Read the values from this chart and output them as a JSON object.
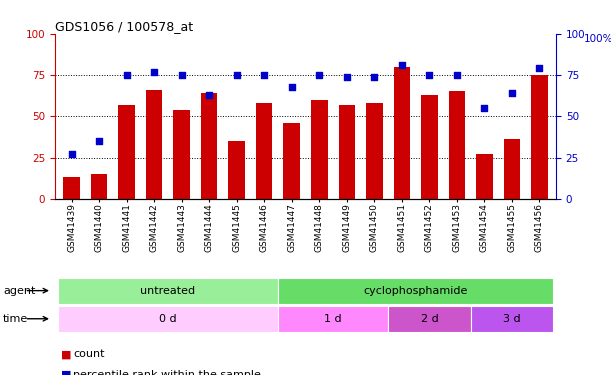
{
  "title": "GDS1056 / 100578_at",
  "samples": [
    "GSM41439",
    "GSM41440",
    "GSM41441",
    "GSM41442",
    "GSM41443",
    "GSM41444",
    "GSM41445",
    "GSM41446",
    "GSM41447",
    "GSM41448",
    "GSM41449",
    "GSM41450",
    "GSM41451",
    "GSM41452",
    "GSM41453",
    "GSM41454",
    "GSM41455",
    "GSM41456"
  ],
  "count_values": [
    13,
    15,
    57,
    66,
    54,
    64,
    35,
    58,
    46,
    60,
    57,
    58,
    80,
    63,
    65,
    27,
    36,
    75
  ],
  "percentile_values": [
    27,
    35,
    75,
    77,
    75,
    63,
    75,
    75,
    68,
    75,
    74,
    74,
    81,
    75,
    75,
    55,
    64,
    79
  ],
  "bar_color": "#cc0000",
  "dot_color": "#0000cc",
  "ylim": [
    0,
    100
  ],
  "yticks": [
    0,
    25,
    50,
    75,
    100
  ],
  "hlines": [
    25,
    50,
    75
  ],
  "agent_groups": [
    {
      "text": "untreated",
      "start": 0,
      "end": 7,
      "color": "#99ee99"
    },
    {
      "text": "cyclophosphamide",
      "start": 8,
      "end": 17,
      "color": "#66dd66"
    }
  ],
  "time_groups": [
    {
      "text": "0 d",
      "start": 0,
      "end": 7,
      "color": "#ffccff"
    },
    {
      "text": "1 d",
      "start": 8,
      "end": 11,
      "color": "#ff88ff"
    },
    {
      "text": "2 d",
      "start": 12,
      "end": 14,
      "color": "#cc55cc"
    },
    {
      "text": "3 d",
      "start": 15,
      "end": 17,
      "color": "#bb55ee"
    }
  ],
  "agent_row_label": "agent",
  "time_row_label": "time",
  "legend_count_label": "count",
  "legend_percentile_label": "percentile rank within the sample",
  "left_axis_color": "#cc0000",
  "right_axis_color": "#0000cc",
  "right_ylabel": "100%"
}
